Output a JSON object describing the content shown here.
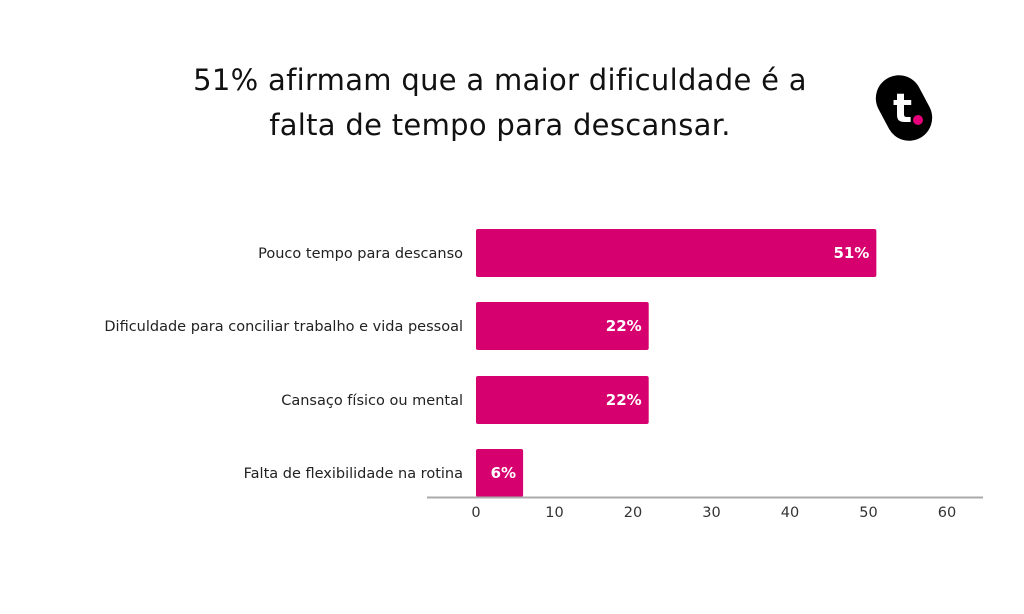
{
  "title_line1": "51% afirmam que a maior dificuldade é a",
  "title_line2": "falta de tempo para descansar.",
  "logo_text": "t.",
  "colors": {
    "bar": "#d6006f",
    "axis": "#aaaaaa",
    "logo_bg": "#000000",
    "logo_dot": "#e6007a"
  },
  "chart_data": {
    "type": "bar",
    "orientation": "horizontal",
    "title": "51% afirmam que a maior dificuldade é a falta de tempo para descansar.",
    "categories": [
      "Pouco tempo para descanso",
      "Dificuldade para conciliar trabalho e vida pessoal",
      "Cansaço físico ou mental",
      "Falta de flexibilidade na rotina"
    ],
    "values": [
      51,
      22,
      22,
      6
    ],
    "data_labels": [
      "51%",
      "22%",
      "22%",
      "6%"
    ],
    "xlim": [
      0,
      60
    ],
    "xticks": [
      "0",
      "10",
      "20",
      "30",
      "40",
      "50",
      "60"
    ],
    "grid": false,
    "xlabel": "",
    "ylabel": ""
  }
}
